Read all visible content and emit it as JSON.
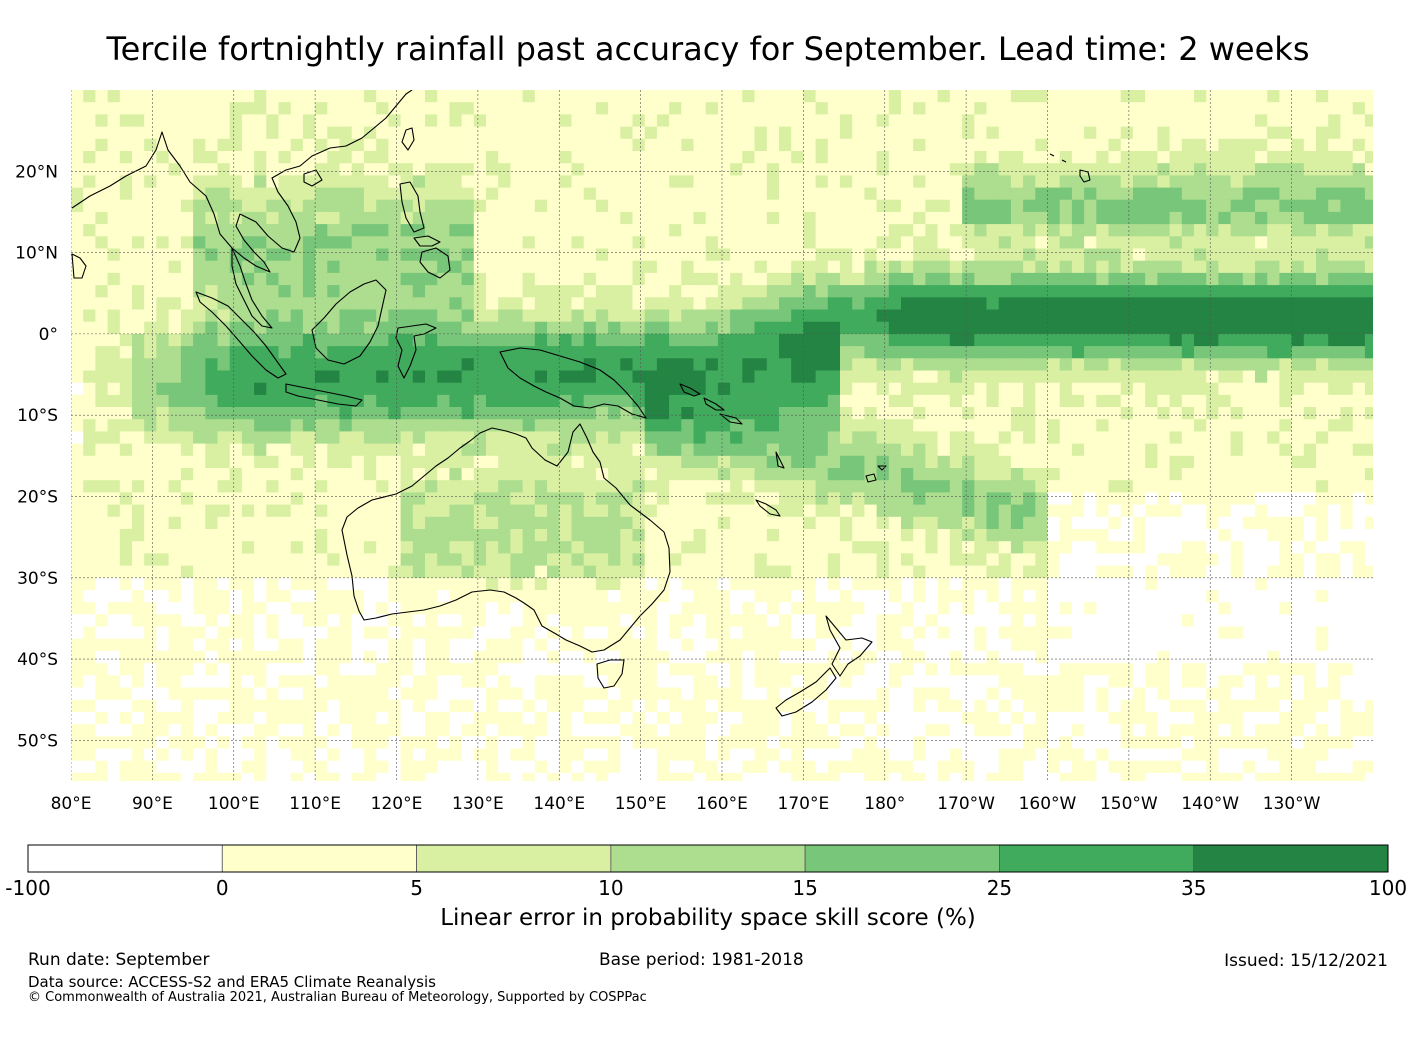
{
  "title": "Tercile fortnightly rainfall past accuracy for September. Lead time: 2 weeks",
  "map": {
    "lat_ticks": [
      "20°N",
      "10°N",
      "0°",
      "10°S",
      "20°S",
      "30°S",
      "40°S",
      "50°S"
    ],
    "lon_ticks": [
      "80°E",
      "90°E",
      "100°E",
      "110°E",
      "120°E",
      "130°E",
      "140°E",
      "150°E",
      "160°E",
      "170°E",
      "180°",
      "170°W",
      "160°W",
      "150°W",
      "140°W",
      "130°W"
    ]
  },
  "colorbar": {
    "title": "Linear error in probability space skill score (%)",
    "tick_labels": [
      "-100",
      "0",
      "5",
      "10",
      "15",
      "25",
      "35",
      "100"
    ],
    "colors": [
      "#ffffff",
      "#ffffcc",
      "#d9f0a3",
      "#addd8e",
      "#78c679",
      "#41ab5d",
      "#238443"
    ]
  },
  "footer": {
    "run_date": "Run date: September",
    "base_period": "Base period: 1981-2018",
    "issued": "Issued: 15/12/2021",
    "data_source": "Data source: ACCESS-S2 and ERA5 Climate Reanalysis",
    "copyright": "© Commonwealth of Australia 2021, Australian Bureau of Meteorology, Supported by COSPPac"
  }
}
